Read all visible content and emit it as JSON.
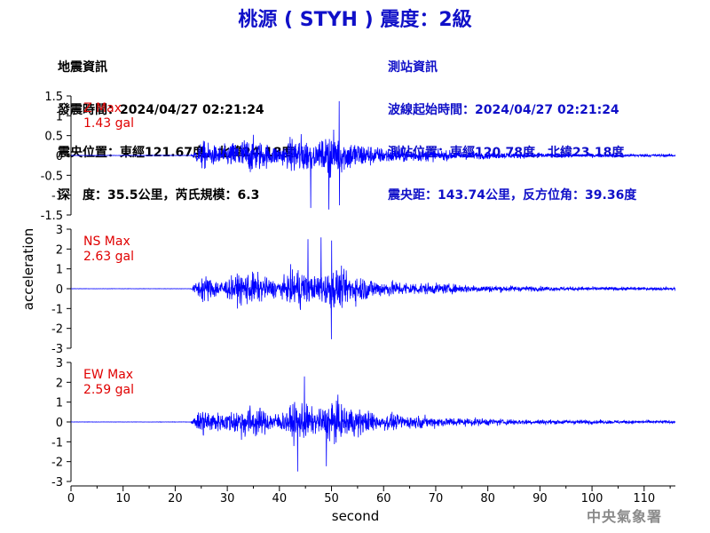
{
  "title": "桃源 ( STYH ) 震度：2級",
  "quake_info": {
    "heading": "地震資訊",
    "origin_time": "發震時間：2024/04/27 02:21:24",
    "epicenter": "震央位置：東經121.67度，北緯24.18度",
    "depth_magnitude": "深　度：35.5公里，芮氏規模：6.3"
  },
  "station_info": {
    "heading": "測站資訊",
    "wave_start": "波線起始時間：2024/04/27 02:21:24",
    "station_location": "測站位置：東經120.78度，北緯23.18度",
    "distance_azimuth": "震央距：143.74公里，反方位角：39.36度"
  },
  "credit": "中央氣象署",
  "colors": {
    "trace": "#0000ff",
    "title": "#1010c8",
    "max_label": "#e00000"
  },
  "chart_data": {
    "type": "line",
    "xlabel": "second",
    "ylabel": "acceleration",
    "xlim": [
      0,
      116
    ],
    "xticks": [
      0,
      10,
      20,
      30,
      40,
      50,
      60,
      70,
      80,
      90,
      100,
      110
    ],
    "panels": [
      {
        "name": "Z Max",
        "max_label": "1.43 gal",
        "peak": 1.43,
        "ylim": [
          -1.5,
          1.5
        ],
        "yticks": [
          -1.5,
          -1,
          -0.5,
          0,
          0.5,
          1,
          1.5
        ],
        "ytick_labels": [
          "-1.5",
          "-1",
          "-0.5",
          "0",
          "0.5",
          "1",
          "1.5"
        ]
      },
      {
        "name": "NS Max",
        "max_label": "2.63 gal",
        "peak": 2.63,
        "ylim": [
          -3,
          3
        ],
        "yticks": [
          -3,
          -2,
          -1,
          0,
          1,
          2,
          3
        ],
        "ytick_labels": [
          "-3",
          "-2",
          "-1",
          "0",
          "1",
          "2",
          "3"
        ]
      },
      {
        "name": "EW Max",
        "max_label": "2.59 gal",
        "peak": 2.59,
        "ylim": [
          -3,
          3
        ],
        "yticks": [
          -3,
          -2,
          -1,
          0,
          1,
          2,
          3
        ],
        "ytick_labels": [
          "-3",
          "-2",
          "-1",
          "0",
          "1",
          "2",
          "3"
        ]
      }
    ]
  }
}
